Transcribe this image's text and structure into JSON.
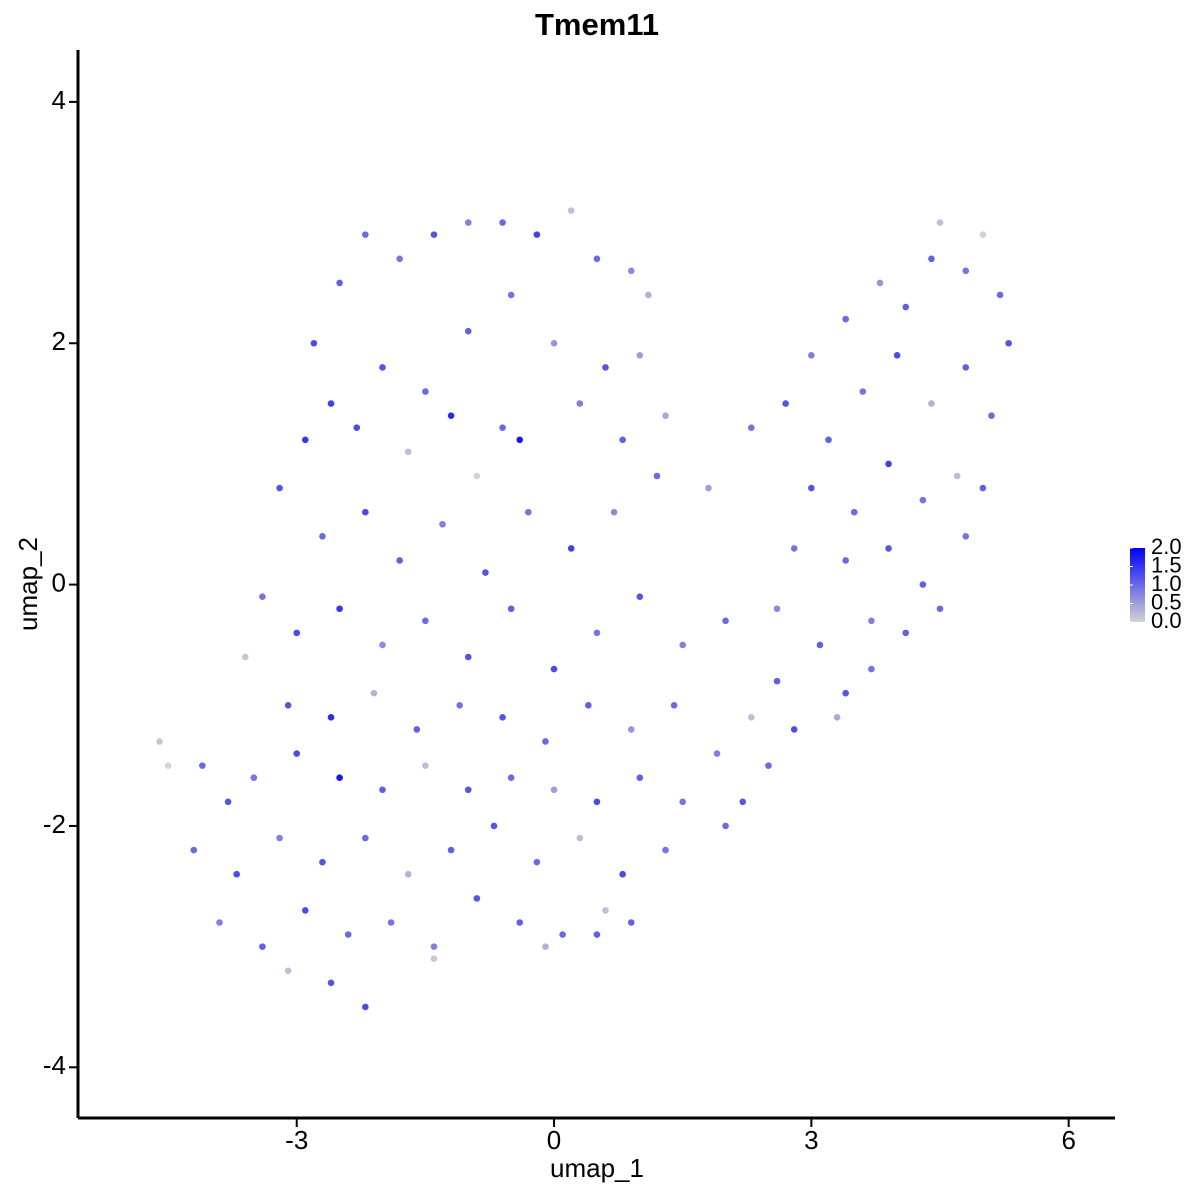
{
  "chart_data": {
    "type": "scatter",
    "title": "Tmem11",
    "x_label": "umap_1",
    "y_label": "umap_2",
    "xlim": [
      -5.55,
      6.54
    ],
    "ylim": [
      -4.42,
      4.43
    ],
    "xticks": [
      -3,
      0,
      3,
      6
    ],
    "yticks": [
      -4,
      -2,
      0,
      2,
      4
    ],
    "color_low": "#d3d3d3",
    "color_high": "#0000ff",
    "colorbar": {
      "lim": [
        0,
        2
      ],
      "ticks": [
        {
          "value": 0,
          "label": "0.0"
        },
        0.5,
        {
          "value": 1,
          "label": "1.0"
        },
        1.5,
        {
          "value": 2,
          "label": "2.0"
        }
      ]
    },
    "points": [
      [
        -2.8,
        2.0,
        1.3
      ],
      [
        -2.5,
        2.5,
        1.1
      ],
      [
        -2.2,
        2.9,
        1.0
      ],
      [
        -1.8,
        2.7,
        0.9
      ],
      [
        -1.4,
        2.9,
        1.2
      ],
      [
        -1.0,
        3.0,
        0.8
      ],
      [
        -0.6,
        3.0,
        1.0
      ],
      [
        -0.2,
        2.9,
        1.4
      ],
      [
        0.2,
        3.1,
        0.2
      ],
      [
        0.5,
        2.7,
        1.0
      ],
      [
        0.9,
        2.6,
        0.7
      ],
      [
        1.1,
        2.4,
        0.3
      ],
      [
        -2.6,
        1.5,
        1.4
      ],
      [
        -2.0,
        1.8,
        1.2
      ],
      [
        -1.5,
        1.6,
        1.0
      ],
      [
        -1.0,
        2.1,
        1.1
      ],
      [
        -0.5,
        2.4,
        0.9
      ],
      [
        0.0,
        2.0,
        0.6
      ],
      [
        0.6,
        1.8,
        1.2
      ],
      [
        1.0,
        1.9,
        0.5
      ],
      [
        -2.9,
        1.2,
        1.5
      ],
      [
        -2.3,
        1.3,
        1.3
      ],
      [
        -1.7,
        1.1,
        0.2
      ],
      [
        -1.2,
        1.4,
        1.6
      ],
      [
        -0.6,
        1.3,
        1.0
      ],
      [
        -0.4,
        1.2,
        1.8
      ],
      [
        0.3,
        1.5,
        0.8
      ],
      [
        0.8,
        1.2,
        1.1
      ],
      [
        1.3,
        1.4,
        0.4
      ],
      [
        -0.9,
        0.9,
        0.0
      ],
      [
        -3.2,
        0.8,
        1.2
      ],
      [
        -2.7,
        0.4,
        1.0
      ],
      [
        -2.2,
        0.6,
        1.3
      ],
      [
        -1.8,
        0.2,
        1.1
      ],
      [
        -1.3,
        0.5,
        0.8
      ],
      [
        -0.8,
        0.1,
        1.2
      ],
      [
        -0.3,
        0.6,
        0.9
      ],
      [
        0.2,
        0.3,
        1.4
      ],
      [
        0.7,
        0.6,
        0.7
      ],
      [
        1.2,
        0.9,
        1.0
      ],
      [
        1.8,
        0.8,
        0.5
      ],
      [
        2.3,
        1.3,
        0.9
      ],
      [
        -3.4,
        -0.1,
        0.9
      ],
      [
        -3.0,
        -0.4,
        1.3
      ],
      [
        -2.5,
        -0.2,
        1.5
      ],
      [
        -2.0,
        -0.5,
        0.7
      ],
      [
        -1.5,
        -0.3,
        1.0
      ],
      [
        -1.0,
        -0.6,
        1.2
      ],
      [
        -0.5,
        -0.2,
        1.1
      ],
      [
        0.0,
        -0.7,
        1.3
      ],
      [
        0.5,
        -0.4,
        0.9
      ],
      [
        1.0,
        -0.1,
        1.2
      ],
      [
        1.5,
        -0.5,
        0.8
      ],
      [
        2.0,
        -0.3,
        1.0
      ],
      [
        2.6,
        -0.8,
        1.1
      ],
      [
        -3.6,
        -0.6,
        0.1
      ],
      [
        -3.1,
        -1.0,
        1.2
      ],
      [
        -2.6,
        -1.1,
        1.6
      ],
      [
        -2.1,
        -0.9,
        0.3
      ],
      [
        -1.6,
        -1.2,
        1.1
      ],
      [
        -1.1,
        -1.0,
        0.9
      ],
      [
        -0.6,
        -1.1,
        1.2
      ],
      [
        -0.1,
        -1.3,
        1.0
      ],
      [
        0.4,
        -1.0,
        1.1
      ],
      [
        0.9,
        -1.2,
        0.6
      ],
      [
        1.4,
        -1.0,
        1.0
      ],
      [
        1.9,
        -1.4,
        0.8
      ],
      [
        2.3,
        -1.1,
        0.2
      ],
      [
        -4.6,
        -1.3,
        0.1
      ],
      [
        -4.5,
        -1.5,
        0.0
      ],
      [
        -4.1,
        -1.5,
        1.0
      ],
      [
        -3.8,
        -1.8,
        1.2
      ],
      [
        -3.5,
        -1.6,
        0.9
      ],
      [
        -3.0,
        -1.4,
        1.3
      ],
      [
        -2.5,
        -1.6,
        1.8
      ],
      [
        -2.0,
        -1.7,
        1.1
      ],
      [
        -1.5,
        -1.5,
        0.2
      ],
      [
        -1.0,
        -1.7,
        1.2
      ],
      [
        -0.5,
        -1.6,
        1.0
      ],
      [
        0.0,
        -1.7,
        0.5
      ],
      [
        0.5,
        -1.8,
        1.3
      ],
      [
        1.0,
        -1.6,
        1.1
      ],
      [
        1.5,
        -1.8,
        0.9
      ],
      [
        -4.2,
        -2.2,
        1.0
      ],
      [
        -3.7,
        -2.4,
        1.3
      ],
      [
        -3.2,
        -2.1,
        0.8
      ],
      [
        -2.7,
        -2.3,
        1.2
      ],
      [
        -2.2,
        -2.1,
        1.0
      ],
      [
        -1.7,
        -2.4,
        0.3
      ],
      [
        -1.2,
        -2.2,
        1.1
      ],
      [
        -0.7,
        -2.0,
        1.2
      ],
      [
        -0.2,
        -2.3,
        1.0
      ],
      [
        0.3,
        -2.1,
        0.2
      ],
      [
        0.8,
        -2.4,
        1.3
      ],
      [
        1.3,
        -2.2,
        0.9
      ],
      [
        -3.9,
        -2.8,
        0.8
      ],
      [
        -3.4,
        -3.0,
        1.1
      ],
      [
        -2.9,
        -2.7,
        1.3
      ],
      [
        -2.4,
        -2.9,
        1.0
      ],
      [
        -1.9,
        -2.8,
        0.9
      ],
      [
        -1.4,
        -3.1,
        0.1
      ],
      [
        -0.9,
        -2.6,
        1.2
      ],
      [
        -0.4,
        -2.8,
        1.1
      ],
      [
        0.1,
        -2.9,
        1.0
      ],
      [
        0.6,
        -2.7,
        0.2
      ],
      [
        0.9,
        -2.8,
        1.1
      ],
      [
        -2.6,
        -3.3,
        1.2
      ],
      [
        -2.2,
        -3.5,
        1.3
      ],
      [
        -3.1,
        -3.2,
        0.2
      ],
      [
        -1.4,
        -3.0,
        0.8
      ],
      [
        -0.1,
        -3.0,
        0.3
      ],
      [
        0.5,
        -2.9,
        1.1
      ],
      [
        2.7,
        1.5,
        1.2
      ],
      [
        3.0,
        1.9,
        0.8
      ],
      [
        3.4,
        2.2,
        1.0
      ],
      [
        3.8,
        2.5,
        0.6
      ],
      [
        4.1,
        2.3,
        1.1
      ],
      [
        4.5,
        3.0,
        0.2
      ],
      [
        4.8,
        2.6,
        0.9
      ],
      [
        5.2,
        2.4,
        1.0
      ],
      [
        5.3,
        2.0,
        1.2
      ],
      [
        3.2,
        1.2,
        1.1
      ],
      [
        3.6,
        1.6,
        0.9
      ],
      [
        4.0,
        1.9,
        1.3
      ],
      [
        4.4,
        1.5,
        0.3
      ],
      [
        4.8,
        1.8,
        1.1
      ],
      [
        5.1,
        1.4,
        1.0
      ],
      [
        3.0,
        0.8,
        1.2
      ],
      [
        3.5,
        0.6,
        1.0
      ],
      [
        3.9,
        1.0,
        1.4
      ],
      [
        4.3,
        0.7,
        0.9
      ],
      [
        4.7,
        0.9,
        0.2
      ],
      [
        5.0,
        0.8,
        1.1
      ],
      [
        2.8,
        0.3,
        0.9
      ],
      [
        3.4,
        0.2,
        1.0
      ],
      [
        3.9,
        0.3,
        1.2
      ],
      [
        4.3,
        0.0,
        1.1
      ],
      [
        4.8,
        0.4,
        0.9
      ],
      [
        4.5,
        -0.2,
        1.0
      ],
      [
        3.7,
        -0.3,
        0.8
      ],
      [
        3.1,
        -0.5,
        1.1
      ],
      [
        3.4,
        -0.9,
        1.2
      ],
      [
        2.8,
        -1.2,
        1.3
      ],
      [
        2.5,
        -1.5,
        1.0
      ],
      [
        2.2,
        -1.8,
        1.2
      ],
      [
        3.7,
        -0.7,
        0.9
      ],
      [
        4.1,
        -0.4,
        1.1
      ],
      [
        2.6,
        -0.2,
        0.7
      ],
      [
        3.3,
        -1.1,
        0.4
      ],
      [
        4.4,
        2.7,
        1.1
      ],
      [
        5.0,
        2.9,
        0.0
      ],
      [
        2.0,
        -2.0,
        1.0
      ]
    ]
  }
}
